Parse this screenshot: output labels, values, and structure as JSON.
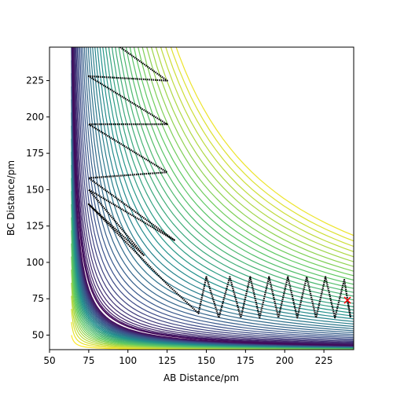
{
  "chart_data": {
    "type": "contour_trajectory",
    "xlabel": "AB Distance/pm",
    "ylabel": "BC Distance/pm",
    "xlim": [
      50,
      244
    ],
    "ylim": [
      40,
      248
    ],
    "xticks": [
      50,
      75,
      100,
      125,
      150,
      175,
      200,
      225
    ],
    "yticks": [
      50,
      75,
      100,
      125,
      150,
      175,
      200,
      225
    ],
    "series": [
      {
        "color": "#000000",
        "x": [
          95,
          125,
          75,
          125,
          75,
          125,
          75,
          130,
          75,
          110,
          75,
          125,
          145,
          150,
          158,
          165,
          172,
          178,
          184,
          190,
          196,
          202,
          208,
          214,
          220,
          226,
          232,
          238,
          242,
          240
        ],
        "y": [
          248,
          225,
          228,
          195,
          195,
          162,
          158,
          115,
          150,
          105,
          140,
          85,
          65,
          90,
          62,
          90,
          62,
          90,
          62,
          90,
          62,
          90,
          62,
          90,
          62,
          90,
          62,
          88,
          62,
          74
        ]
      }
    ],
    "marker": {
      "x": 240,
      "y": 74,
      "color": "#ff0000"
    }
  }
}
